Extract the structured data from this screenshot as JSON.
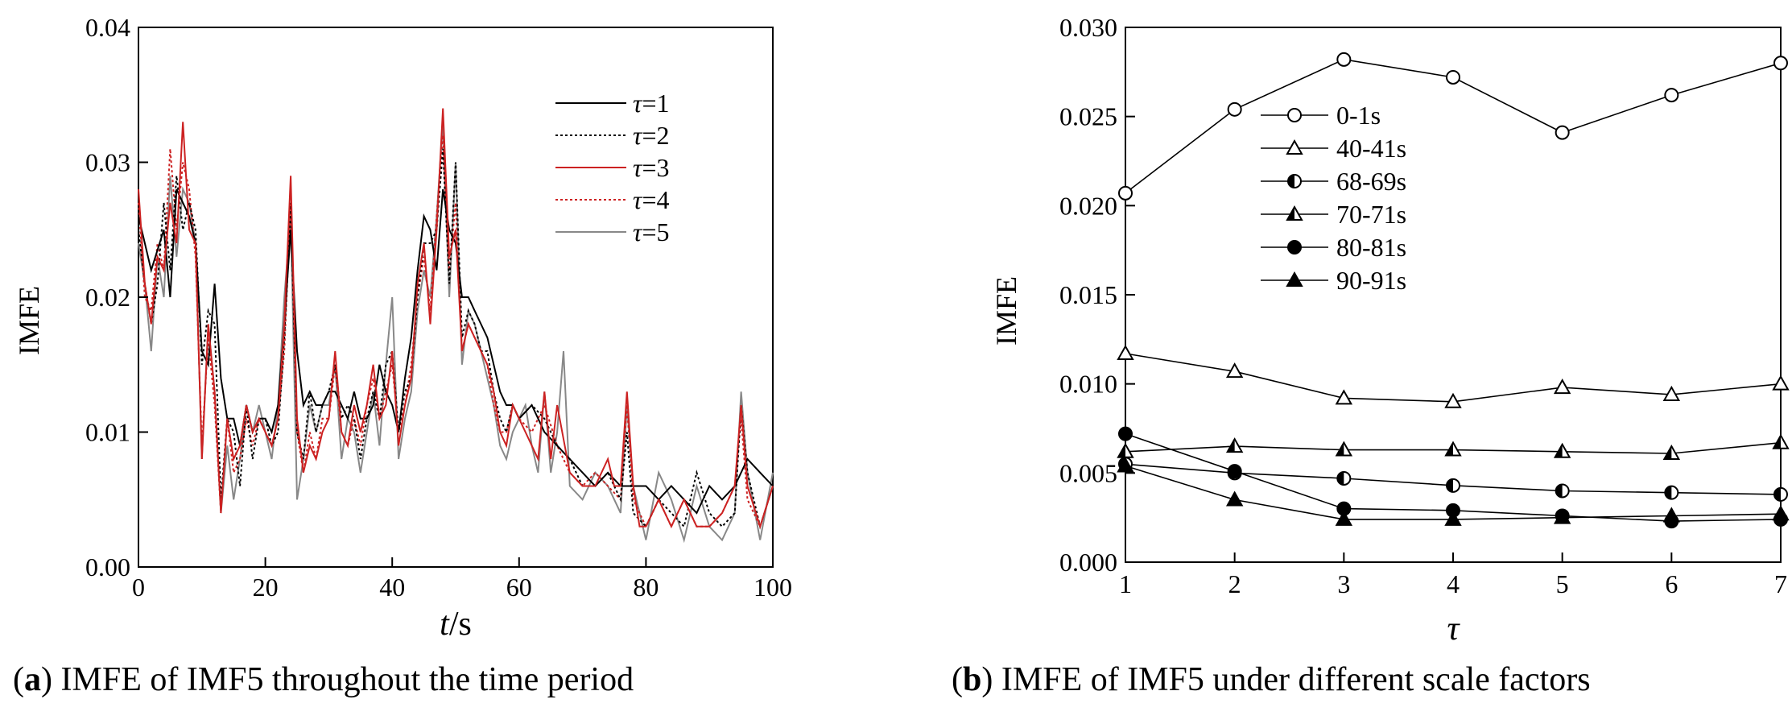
{
  "chart_data": [
    {
      "type": "line",
      "caption": {
        "letter": "a",
        "text": "IMFE of IMF5 throughout the time period"
      },
      "xlabel_italic": "t",
      "xlabel_unit": "/s",
      "ylabel": "IMFE",
      "xlim": [
        0,
        100
      ],
      "ylim": [
        0,
        0.04
      ],
      "xticks": [
        0,
        20,
        40,
        60,
        80,
        100
      ],
      "yticks": [
        0.0,
        0.01,
        0.02,
        0.03,
        0.04
      ],
      "ytick_labels": [
        "0.00",
        "0.01",
        "0.02",
        "0.03",
        "0.04"
      ],
      "legend_position": "top-right",
      "series": [
        {
          "name": "τ=1",
          "legend_symbol": "τ",
          "legend_value": "=1",
          "color": "#000000",
          "dash": "solid",
          "x": [
            0,
            2,
            4,
            5,
            6,
            7,
            8,
            9,
            10,
            11,
            12,
            13,
            14,
            15,
            16,
            17,
            18,
            19,
            20,
            21,
            22,
            23,
            24,
            25,
            26,
            27,
            28,
            29,
            30,
            31,
            32,
            33,
            34,
            35,
            36,
            37,
            38,
            39,
            40,
            41,
            42,
            43,
            44,
            45,
            46,
            47,
            48,
            49,
            50,
            51,
            52,
            53,
            54,
            55,
            56,
            57,
            58,
            59,
            60,
            62,
            64,
            66,
            68,
            70,
            72,
            74,
            76,
            78,
            80,
            82,
            84,
            86,
            88,
            90,
            92,
            94,
            96,
            98,
            100
          ],
          "y": [
            0.026,
            0.022,
            0.025,
            0.02,
            0.028,
            0.027,
            0.026,
            0.024,
            0.016,
            0.015,
            0.021,
            0.014,
            0.011,
            0.011,
            0.009,
            0.012,
            0.01,
            0.011,
            0.011,
            0.01,
            0.012,
            0.018,
            0.025,
            0.016,
            0.012,
            0.013,
            0.012,
            0.012,
            0.013,
            0.013,
            0.012,
            0.011,
            0.013,
            0.011,
            0.011,
            0.012,
            0.015,
            0.013,
            0.012,
            0.01,
            0.014,
            0.017,
            0.022,
            0.026,
            0.025,
            0.022,
            0.028,
            0.025,
            0.024,
            0.02,
            0.02,
            0.019,
            0.018,
            0.017,
            0.015,
            0.013,
            0.012,
            0.012,
            0.011,
            0.012,
            0.01,
            0.009,
            0.008,
            0.007,
            0.006,
            0.007,
            0.006,
            0.006,
            0.006,
            0.005,
            0.006,
            0.005,
            0.004,
            0.006,
            0.005,
            0.006,
            0.008,
            0.007,
            0.006
          ]
        },
        {
          "name": "τ=2",
          "legend_symbol": "τ",
          "legend_value": "=2",
          "color": "#000000",
          "dash": "dotted",
          "x": [
            0,
            1,
            2,
            3,
            4,
            5,
            6,
            7,
            8,
            9,
            10,
            11,
            12,
            13,
            14,
            15,
            16,
            17,
            18,
            19,
            20,
            21,
            22,
            23,
            24,
            25,
            26,
            27,
            28,
            29,
            30,
            31,
            32,
            33,
            34,
            35,
            36,
            37,
            38,
            39,
            40,
            41,
            42,
            43,
            44,
            45,
            46,
            47,
            48,
            49,
            50,
            51,
            52,
            53,
            54,
            55,
            56,
            57,
            58,
            59,
            60,
            62,
            64,
            66,
            68,
            70,
            72,
            74,
            76,
            77,
            78,
            80,
            82,
            84,
            86,
            88,
            90,
            92,
            94,
            95,
            96,
            98,
            100
          ],
          "y": [
            0.025,
            0.021,
            0.018,
            0.021,
            0.027,
            0.022,
            0.029,
            0.025,
            0.027,
            0.025,
            0.015,
            0.019,
            0.018,
            0.005,
            0.011,
            0.01,
            0.006,
            0.012,
            0.008,
            0.011,
            0.011,
            0.009,
            0.01,
            0.017,
            0.027,
            0.01,
            0.008,
            0.013,
            0.01,
            0.012,
            0.013,
            0.015,
            0.011,
            0.012,
            0.011,
            0.008,
            0.011,
            0.013,
            0.011,
            0.015,
            0.016,
            0.01,
            0.013,
            0.014,
            0.02,
            0.024,
            0.024,
            0.025,
            0.031,
            0.021,
            0.03,
            0.017,
            0.019,
            0.018,
            0.016,
            0.016,
            0.013,
            0.011,
            0.01,
            0.012,
            0.011,
            0.012,
            0.011,
            0.009,
            0.008,
            0.006,
            0.006,
            0.007,
            0.005,
            0.01,
            0.004,
            0.003,
            0.005,
            0.004,
            0.003,
            0.007,
            0.004,
            0.003,
            0.004,
            0.012,
            0.007,
            0.003,
            0.006
          ]
        },
        {
          "name": "τ=3",
          "legend_symbol": "τ",
          "legend_value": "=3",
          "color": "#cc2222",
          "dash": "solid",
          "x": [
            0,
            1,
            2,
            3,
            4,
            5,
            6,
            7,
            8,
            9,
            10,
            11,
            12,
            13,
            14,
            15,
            16,
            17,
            18,
            19,
            20,
            21,
            22,
            23,
            24,
            25,
            26,
            27,
            28,
            29,
            30,
            31,
            32,
            33,
            34,
            35,
            36,
            37,
            38,
            39,
            40,
            41,
            42,
            43,
            44,
            45,
            46,
            47,
            48,
            49,
            50,
            51,
            52,
            53,
            54,
            55,
            56,
            57,
            58,
            59,
            60,
            61,
            62,
            63,
            64,
            65,
            66,
            68,
            70,
            72,
            74,
            75,
            76,
            77,
            78,
            79,
            80,
            82,
            84,
            86,
            88,
            90,
            92,
            94,
            95,
            96,
            98,
            100
          ],
          "y": [
            0.028,
            0.021,
            0.018,
            0.023,
            0.022,
            0.027,
            0.024,
            0.033,
            0.025,
            0.024,
            0.008,
            0.018,
            0.013,
            0.004,
            0.011,
            0.008,
            0.009,
            0.012,
            0.01,
            0.011,
            0.01,
            0.009,
            0.011,
            0.018,
            0.029,
            0.011,
            0.007,
            0.009,
            0.008,
            0.01,
            0.011,
            0.016,
            0.01,
            0.009,
            0.012,
            0.01,
            0.012,
            0.015,
            0.011,
            0.012,
            0.016,
            0.009,
            0.012,
            0.014,
            0.021,
            0.024,
            0.018,
            0.025,
            0.034,
            0.023,
            0.025,
            0.016,
            0.018,
            0.017,
            0.016,
            0.015,
            0.013,
            0.01,
            0.009,
            0.012,
            0.011,
            0.01,
            0.009,
            0.008,
            0.013,
            0.008,
            0.012,
            0.007,
            0.006,
            0.006,
            0.008,
            0.006,
            0.006,
            0.013,
            0.006,
            0.003,
            0.003,
            0.005,
            0.003,
            0.005,
            0.003,
            0.003,
            0.004,
            0.006,
            0.012,
            0.006,
            0.003,
            0.006
          ]
        },
        {
          "name": "τ=4",
          "legend_symbol": "τ",
          "legend_value": "=4",
          "color": "#cc2222",
          "dash": "dotted",
          "x": [
            0,
            1,
            2,
            3,
            4,
            5,
            6,
            7,
            8,
            9,
            10,
            11,
            12,
            13,
            14,
            15,
            16,
            17,
            18,
            19,
            20,
            21,
            22,
            23,
            24,
            25,
            26,
            27,
            28,
            29,
            30,
            31,
            32,
            33,
            34,
            35,
            36,
            37,
            38,
            39,
            40,
            41,
            42,
            43,
            44,
            45,
            46,
            47,
            48,
            49,
            50,
            51,
            52,
            53,
            54,
            55,
            56,
            57,
            58,
            59,
            60,
            62,
            64,
            66,
            68,
            70,
            72,
            74,
            76,
            77,
            78,
            80,
            82,
            84,
            86,
            88,
            90,
            92,
            94,
            95,
            96,
            98,
            100
          ],
          "y": [
            0.027,
            0.02,
            0.019,
            0.024,
            0.022,
            0.031,
            0.025,
            0.03,
            0.028,
            0.023,
            0.009,
            0.017,
            0.012,
            0.004,
            0.011,
            0.007,
            0.008,
            0.011,
            0.009,
            0.011,
            0.01,
            0.009,
            0.011,
            0.016,
            0.027,
            0.01,
            0.007,
            0.01,
            0.008,
            0.011,
            0.011,
            0.015,
            0.01,
            0.009,
            0.011,
            0.009,
            0.012,
            0.014,
            0.011,
            0.013,
            0.015,
            0.01,
            0.012,
            0.015,
            0.02,
            0.023,
            0.019,
            0.026,
            0.032,
            0.022,
            0.027,
            0.016,
            0.018,
            0.017,
            0.016,
            0.015,
            0.012,
            0.01,
            0.01,
            0.012,
            0.011,
            0.01,
            0.012,
            0.009,
            0.007,
            0.006,
            0.007,
            0.006,
            0.005,
            0.012,
            0.005,
            0.003,
            0.005,
            0.003,
            0.005,
            0.003,
            0.003,
            0.004,
            0.006,
            0.011,
            0.005,
            0.003,
            0.006
          ]
        },
        {
          "name": "τ=5",
          "legend_symbol": "τ",
          "legend_value": "=5",
          "color": "#888888",
          "dash": "solid",
          "x": [
            0,
            1,
            2,
            3,
            4,
            5,
            6,
            7,
            8,
            9,
            10,
            11,
            12,
            13,
            14,
            15,
            16,
            17,
            18,
            19,
            20,
            21,
            22,
            23,
            24,
            25,
            26,
            27,
            28,
            29,
            30,
            31,
            32,
            33,
            34,
            35,
            36,
            37,
            38,
            39,
            40,
            41,
            42,
            43,
            44,
            45,
            46,
            47,
            48,
            49,
            50,
            51,
            52,
            53,
            54,
            55,
            56,
            57,
            58,
            59,
            60,
            61,
            62,
            63,
            64,
            65,
            66,
            67,
            68,
            70,
            72,
            74,
            76,
            77,
            78,
            80,
            82,
            84,
            86,
            88,
            90,
            92,
            94,
            95,
            96,
            98,
            100
          ],
          "y": [
            0.024,
            0.021,
            0.016,
            0.023,
            0.02,
            0.029,
            0.023,
            0.028,
            0.027,
            0.024,
            0.008,
            0.018,
            0.013,
            0.004,
            0.009,
            0.005,
            0.008,
            0.012,
            0.01,
            0.012,
            0.01,
            0.008,
            0.012,
            0.02,
            0.026,
            0.005,
            0.008,
            0.012,
            0.01,
            0.012,
            0.012,
            0.015,
            0.008,
            0.011,
            0.01,
            0.007,
            0.01,
            0.013,
            0.009,
            0.015,
            0.02,
            0.008,
            0.011,
            0.013,
            0.019,
            0.022,
            0.02,
            0.026,
            0.033,
            0.02,
            0.03,
            0.015,
            0.019,
            0.018,
            0.016,
            0.014,
            0.012,
            0.009,
            0.008,
            0.01,
            0.011,
            0.012,
            0.009,
            0.007,
            0.013,
            0.007,
            0.01,
            0.016,
            0.006,
            0.005,
            0.007,
            0.006,
            0.004,
            0.012,
            0.006,
            0.002,
            0.007,
            0.005,
            0.002,
            0.006,
            0.003,
            0.002,
            0.004,
            0.013,
            0.007,
            0.002,
            0.007
          ]
        }
      ]
    },
    {
      "type": "line",
      "caption": {
        "letter": "b",
        "text": "IMFE of IMF5 under different scale factors"
      },
      "xlabel": "τ",
      "ylabel": "IMFE",
      "xlim": [
        1,
        7
      ],
      "ylim": [
        0,
        0.03
      ],
      "xticks": [
        1,
        2,
        3,
        4,
        5,
        6,
        7
      ],
      "yticks": [
        0.0,
        0.005,
        0.01,
        0.015,
        0.02,
        0.025,
        0.03
      ],
      "ytick_labels": [
        "0.000",
        "0.005",
        "0.010",
        "0.015",
        "0.020",
        "0.025",
        "0.030"
      ],
      "legend_position": "upper-left",
      "categories": [
        1,
        2,
        3,
        4,
        5,
        6,
        7
      ],
      "series": [
        {
          "name": "0-1s",
          "marker": "circle-open",
          "values": [
            0.0207,
            0.0254,
            0.0282,
            0.0272,
            0.0241,
            0.0262,
            0.028
          ]
        },
        {
          "name": "40-41s",
          "marker": "triangle-open",
          "values": [
            0.0117,
            0.0107,
            0.0092,
            0.009,
            0.0098,
            0.0094,
            0.01
          ]
        },
        {
          "name": "68-69s",
          "marker": "circle-half",
          "values": [
            0.0055,
            0.005,
            0.0047,
            0.0043,
            0.004,
            0.0039,
            0.0038
          ]
        },
        {
          "name": "70-71s",
          "marker": "triangle-half",
          "values": [
            0.0062,
            0.0065,
            0.0063,
            0.0063,
            0.0062,
            0.0061,
            0.0067
          ]
        },
        {
          "name": "80-81s",
          "marker": "circle-filled",
          "values": [
            0.0072,
            0.0051,
            0.003,
            0.0029,
            0.0026,
            0.0023,
            0.0024
          ]
        },
        {
          "name": "90-91s",
          "marker": "triangle-filled",
          "values": [
            0.0054,
            0.0035,
            0.0024,
            0.0024,
            0.0025,
            0.0026,
            0.0027
          ]
        }
      ]
    }
  ]
}
